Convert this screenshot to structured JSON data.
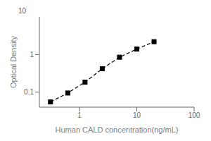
{
  "chart_data": {
    "type": "line",
    "x": [
      0.3125,
      0.625,
      1.25,
      2.5,
      5,
      10,
      20
    ],
    "values": [
      0.055,
      0.095,
      0.185,
      0.42,
      0.85,
      1.4,
      2.2
    ],
    "xlabel": "Human CALD concentration(ng/mL)",
    "ylabel": "Optical Density",
    "xlim": [
      0.2,
      100
    ],
    "ylim": [
      0.04,
      10
    ],
    "xticks": [
      1,
      10,
      100
    ],
    "yticks": [
      0.1,
      1
    ],
    "log": true,
    "color": "black",
    "marker": "square",
    "line_style": "dashed",
    "annotations": [
      "10"
    ]
  }
}
